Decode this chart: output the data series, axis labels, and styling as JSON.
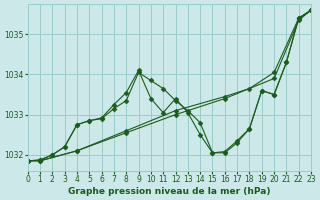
{
  "bg_color": "#cce8e8",
  "grid_color": "#99cccc",
  "line_color": "#1a5c1a",
  "marker_color": "#1a5c1a",
  "xlabel": "Graphe pression niveau de la mer (hPa)",
  "xlim": [
    0,
    23
  ],
  "ylim": [
    1031.6,
    1035.75
  ],
  "yticks": [
    1032,
    1033,
    1034,
    1035
  ],
  "xticks": [
    0,
    1,
    2,
    3,
    4,
    5,
    6,
    7,
    8,
    9,
    10,
    11,
    12,
    13,
    14,
    15,
    16,
    17,
    18,
    19,
    20,
    21,
    22,
    23
  ],
  "series": [
    {
      "x": [
        0,
        1,
        4,
        8,
        12,
        16,
        20,
        22,
        23
      ],
      "y": [
        1031.85,
        1031.85,
        1032.1,
        1032.55,
        1033.0,
        1033.4,
        1033.9,
        1035.35,
        1035.6
      ]
    },
    {
      "x": [
        0,
        1,
        4,
        8,
        12,
        16,
        18,
        20,
        22,
        23
      ],
      "y": [
        1031.85,
        1031.85,
        1032.1,
        1032.6,
        1033.1,
        1033.45,
        1033.65,
        1034.05,
        1035.4,
        1035.6
      ]
    },
    {
      "x": [
        0,
        1,
        2,
        3,
        4,
        5,
        6,
        7,
        8,
        9,
        10,
        11,
        12,
        13,
        14,
        15,
        16,
        17,
        18,
        19,
        20,
        21,
        22,
        23
      ],
      "y": [
        1031.85,
        1031.87,
        1032.0,
        1032.2,
        1032.75,
        1032.85,
        1032.9,
        1033.15,
        1033.35,
        1034.05,
        1033.85,
        1033.65,
        1033.35,
        1033.1,
        1032.8,
        1032.05,
        1032.05,
        1032.3,
        1032.65,
        1033.6,
        1033.5,
        1034.3,
        1035.4,
        1035.6
      ]
    },
    {
      "x": [
        0,
        1,
        2,
        3,
        4,
        5,
        6,
        7,
        8,
        9,
        10,
        11,
        12,
        13,
        14,
        15,
        16,
        17,
        18,
        19,
        20,
        21,
        22,
        23
      ],
      "y": [
        1031.85,
        1031.87,
        1032.0,
        1032.2,
        1032.75,
        1032.85,
        1032.92,
        1033.25,
        1033.55,
        1034.1,
        1033.4,
        1033.05,
        1033.4,
        1033.05,
        1032.5,
        1032.05,
        1032.08,
        1032.35,
        1032.65,
        1033.6,
        1033.5,
        1034.3,
        1035.4,
        1035.6
      ]
    }
  ]
}
